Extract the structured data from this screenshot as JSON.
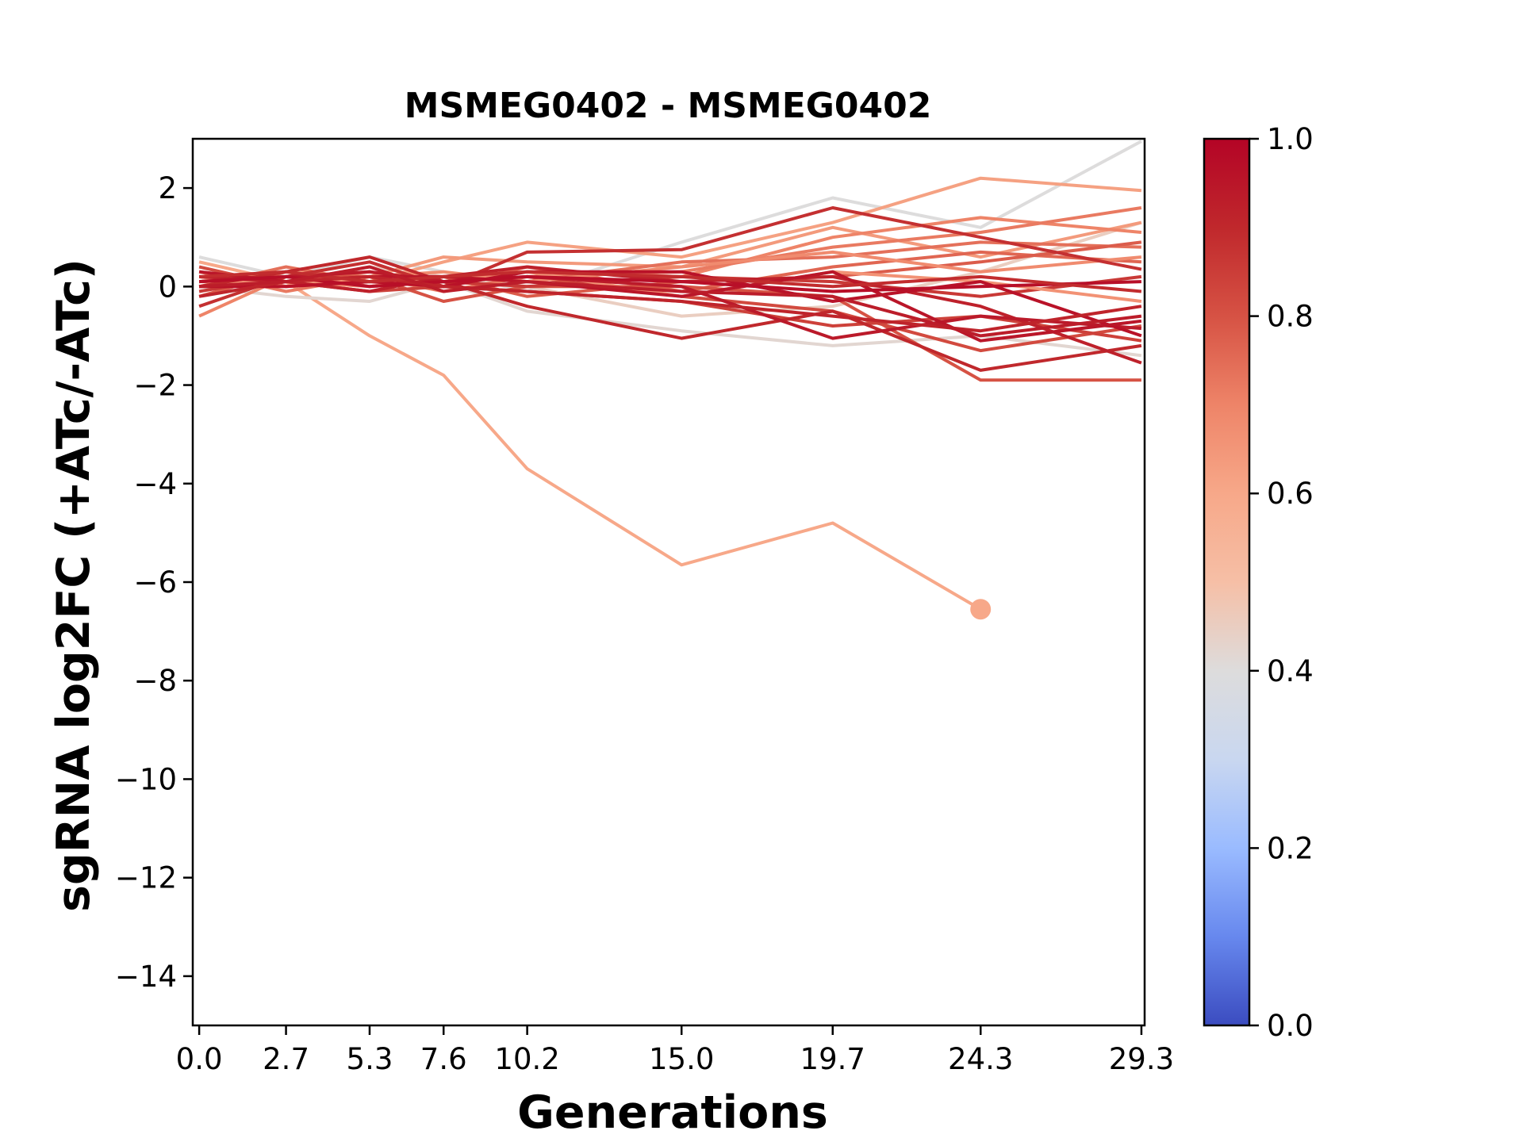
{
  "chart_data": {
    "type": "line",
    "title": "MSMEG0402 - MSMEG0402",
    "xlabel": "Generations",
    "ylabel": "sgRNA log2FC (+ATc/-ATc)",
    "x": [
      0.0,
      2.7,
      5.3,
      7.6,
      10.2,
      15.0,
      19.7,
      24.3,
      29.3
    ],
    "x_tick_labels": [
      "0.0",
      "2.7",
      "5.3",
      "7.6",
      "10.2",
      "15.0",
      "19.7",
      "24.3",
      "29.3"
    ],
    "xlim": [
      -0.2,
      29.4
    ],
    "ylim": [
      -15,
      3
    ],
    "y_ticks": [
      2,
      0,
      -2,
      -4,
      -6,
      -8,
      -10,
      -12,
      -14
    ],
    "y_tick_labels": [
      "2",
      "0",
      "−2",
      "−4",
      "−6",
      "−8",
      "−10",
      "−12",
      "−14"
    ],
    "colorbar": {
      "colormap": "coolwarm",
      "range": [
        0.0,
        1.0
      ],
      "ticks": [
        0.0,
        0.2,
        0.4,
        0.6,
        0.8,
        1.0
      ],
      "tick_labels": [
        "0.0",
        "0.2",
        "0.4",
        "0.6",
        "0.8",
        "1.0"
      ],
      "stops": [
        "#3b4cc0",
        "#6788ee",
        "#9abbff",
        "#c9d7f0",
        "#dddcdc",
        "#f6bfa6",
        "#f7a889",
        "#ee8468",
        "#d65244",
        "#c0282c",
        "#b40426"
      ]
    },
    "series": [
      {
        "c": 0.6,
        "values": [
          0.5,
          0.1,
          -1.0,
          -1.8,
          -3.7,
          -5.65,
          -4.8,
          -6.55,
          null
        ],
        "endpoint_marker": true
      },
      {
        "c": 0.4,
        "values": [
          0.6,
          0.2,
          0.6,
          0.3,
          -0.1,
          0.9,
          1.8,
          1.2,
          2.95
        ]
      },
      {
        "c": 0.42,
        "values": [
          0.0,
          -0.2,
          -0.3,
          0.1,
          -0.5,
          -0.9,
          -1.2,
          -1.0,
          -1.4
        ]
      },
      {
        "c": 0.45,
        "values": [
          0.3,
          0.1,
          0.4,
          0.2,
          0.0,
          -0.6,
          -0.4,
          0.3,
          1.3
        ]
      },
      {
        "c": 0.62,
        "values": [
          0.2,
          0.0,
          0.1,
          0.5,
          0.9,
          0.6,
          1.3,
          2.2,
          1.95
        ]
      },
      {
        "c": 0.64,
        "values": [
          0.1,
          0.3,
          0.2,
          0.6,
          0.5,
          0.4,
          1.2,
          0.6,
          1.3
        ]
      },
      {
        "c": 0.7,
        "values": [
          -0.6,
          0.2,
          0.0,
          0.1,
          0.3,
          0.2,
          1.0,
          1.4,
          1.1
        ]
      },
      {
        "c": 0.72,
        "values": [
          0.3,
          -0.1,
          0.2,
          -0.1,
          0.2,
          0.3,
          0.8,
          1.1,
          1.6
        ]
      },
      {
        "c": 0.74,
        "values": [
          0.0,
          0.4,
          0.1,
          0.2,
          0.1,
          0.5,
          0.6,
          0.9,
          0.8
        ]
      },
      {
        "c": 0.76,
        "values": [
          0.2,
          0.1,
          0.3,
          0.0,
          0.4,
          -0.1,
          0.4,
          0.7,
          0.5
        ]
      },
      {
        "c": 0.78,
        "values": [
          -0.2,
          0.3,
          0.0,
          0.2,
          -0.2,
          0.1,
          0.2,
          0.5,
          0.9
        ]
      },
      {
        "c": 0.8,
        "values": [
          0.1,
          0.2,
          0.2,
          -0.3,
          0.0,
          0.0,
          -0.2,
          -1.9,
          -1.9
        ]
      },
      {
        "c": 0.82,
        "values": [
          0.4,
          0.0,
          0.1,
          0.1,
          0.2,
          -0.2,
          -0.5,
          -1.3,
          -0.8
        ]
      },
      {
        "c": 0.84,
        "values": [
          0.0,
          0.1,
          -0.1,
          0.0,
          -0.1,
          -0.3,
          -0.8,
          -0.6,
          -1.1
        ]
      },
      {
        "c": 0.86,
        "values": [
          -0.1,
          0.2,
          0.3,
          0.1,
          0.0,
          0.2,
          0.1,
          -0.2,
          0.2
        ]
      },
      {
        "c": 0.68,
        "values": [
          0.2,
          0.0,
          0.2,
          0.3,
          0.1,
          0.4,
          0.7,
          0.3,
          0.6
        ]
      },
      {
        "c": 0.66,
        "values": [
          0.1,
          0.1,
          0.0,
          0.2,
          0.3,
          -0.2,
          0.3,
          0.1,
          -0.3
        ]
      },
      {
        "c": 0.88,
        "values": [
          -0.4,
          0.2,
          0.5,
          0.0,
          0.7,
          0.75,
          1.6,
          1.0,
          0.35
        ]
      },
      {
        "c": 0.9,
        "values": [
          0.0,
          0.3,
          0.6,
          0.1,
          -0.4,
          -1.05,
          -0.5,
          -1.7,
          -1.2
        ]
      },
      {
        "c": 0.92,
        "values": [
          0.2,
          0.1,
          -0.1,
          0.2,
          0.4,
          0.1,
          0.2,
          -0.4,
          -1.55
        ]
      },
      {
        "c": 0.94,
        "values": [
          0.1,
          0.2,
          0.3,
          0.1,
          0.2,
          0.0,
          -1.05,
          -0.6,
          -0.85
        ]
      },
      {
        "c": 0.96,
        "values": [
          0.0,
          0.0,
          0.1,
          0.0,
          0.3,
          0.3,
          -0.3,
          0.1,
          -1.0
        ]
      },
      {
        "c": 0.95,
        "values": [
          0.3,
          0.1,
          0.2,
          0.2,
          0.1,
          -0.2,
          0.3,
          -1.1,
          -0.7
        ]
      },
      {
        "c": 0.97,
        "values": [
          0.1,
          0.2,
          0.0,
          0.1,
          0.2,
          0.1,
          -0.1,
          0.0,
          0.1
        ]
      },
      {
        "c": 0.91,
        "values": [
          -0.2,
          0.1,
          0.2,
          0.0,
          -0.1,
          -0.3,
          -0.6,
          -0.9,
          -0.4
        ]
      },
      {
        "c": 0.89,
        "values": [
          0.2,
          0.3,
          0.1,
          0.2,
          0.3,
          0.2,
          0.0,
          0.2,
          -0.1
        ]
      },
      {
        "c": 0.93,
        "values": [
          0.0,
          0.1,
          0.4,
          -0.1,
          0.1,
          -0.1,
          -0.2,
          -1.0,
          -0.6
        ]
      }
    ]
  }
}
